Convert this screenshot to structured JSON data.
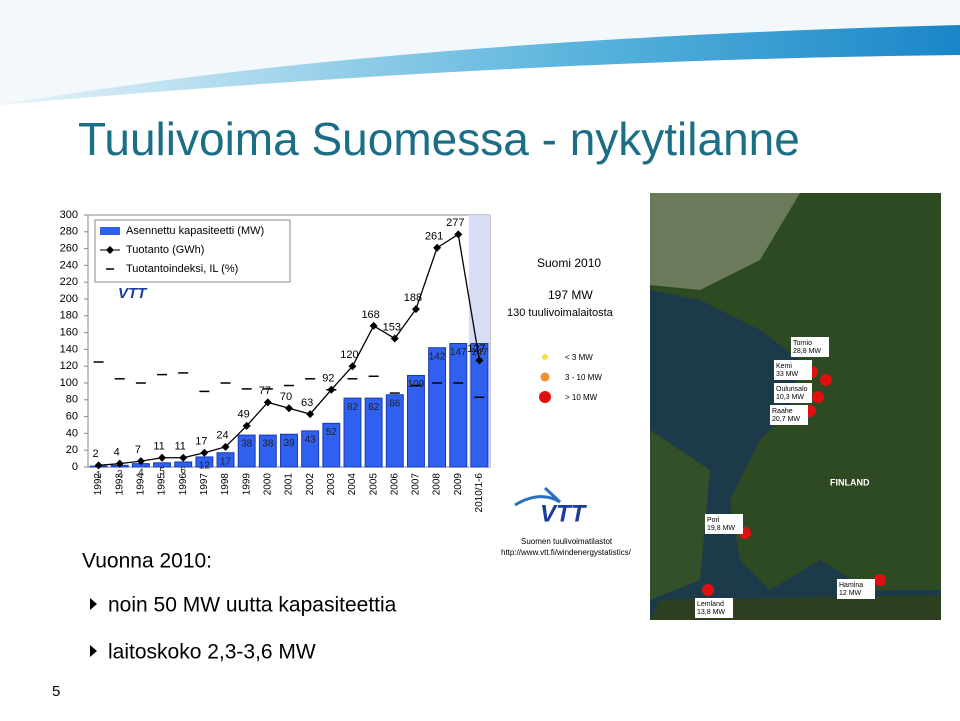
{
  "slide": {
    "title": "Tuulivoima Suomessa - nykytilanne",
    "subheading": "Vuonna 2010:",
    "bullets": [
      "noin 50 MW uutta kapasiteettia",
      "laitoskoko 2,3-3,6 MW"
    ],
    "page_number": "5"
  },
  "chart_data": {
    "type": "bar",
    "logo": "VTT",
    "categories": [
      "1992",
      "1993",
      "1994",
      "1995",
      "1996",
      "1997",
      "1998",
      "1999",
      "2000",
      "2001",
      "2002",
      "2003",
      "2004",
      "2005",
      "2006",
      "2007",
      "2008",
      "2009",
      "2010/1-6"
    ],
    "series": [
      {
        "name": "Asennettu kapasiteetti (MW)",
        "color": "#3060f0",
        "kind": "bar",
        "values": [
          1,
          2,
          4,
          5,
          6,
          12,
          17,
          38,
          38,
          39,
          43,
          52,
          82,
          82,
          86,
          109,
          142,
          147,
          147
        ]
      },
      {
        "name": "Tuotanto (GWh)",
        "color": "#000000",
        "kind": "line",
        "values": [
          2,
          4,
          7,
          11,
          11,
          17,
          24,
          49,
          77,
          70,
          63,
          92,
          120,
          168,
          153,
          188,
          261,
          277,
          127
        ]
      },
      {
        "name": "Tuotantoindeksi, IL (%)",
        "color": "#000000",
        "kind": "dash",
        "values": [
          125,
          105,
          100,
          110,
          112,
          90,
          100,
          93,
          93,
          97,
          105,
          92,
          105,
          108,
          88,
          97,
          100,
          100,
          83
        ]
      }
    ],
    "ylim": [
      0,
      300
    ],
    "yticks": [
      0,
      20,
      40,
      60,
      80,
      100,
      120,
      140,
      160,
      180,
      200,
      220,
      240,
      260,
      280,
      300
    ],
    "grid": false
  },
  "map": {
    "title": "Suomi 2010",
    "total": "197 MW",
    "count": "130 tuulivoimalaitosta",
    "legend": [
      "< 3 MW",
      "3 - 10 MW",
      "> 10 MW"
    ],
    "country": "FINLAND",
    "sites": [
      {
        "name": "Tornio",
        "mw": "28,8 MW"
      },
      {
        "name": "Kemi",
        "mw": "33 MW"
      },
      {
        "name": "Oulunsalo",
        "mw": "10,3 MW"
      },
      {
        "name": "Raahe",
        "mw": "20,7 MW"
      },
      {
        "name": "Pori",
        "mw": "19,8 MW"
      },
      {
        "name": "Lemland",
        "mw": "13,8 MW"
      },
      {
        "name": "Hamina",
        "mw": "12 MW"
      }
    ],
    "logo": "VTT",
    "source": "Suomen tuulivoimatilastot",
    "url": "http://www.vtt.fi/windenergystatistics/"
  }
}
